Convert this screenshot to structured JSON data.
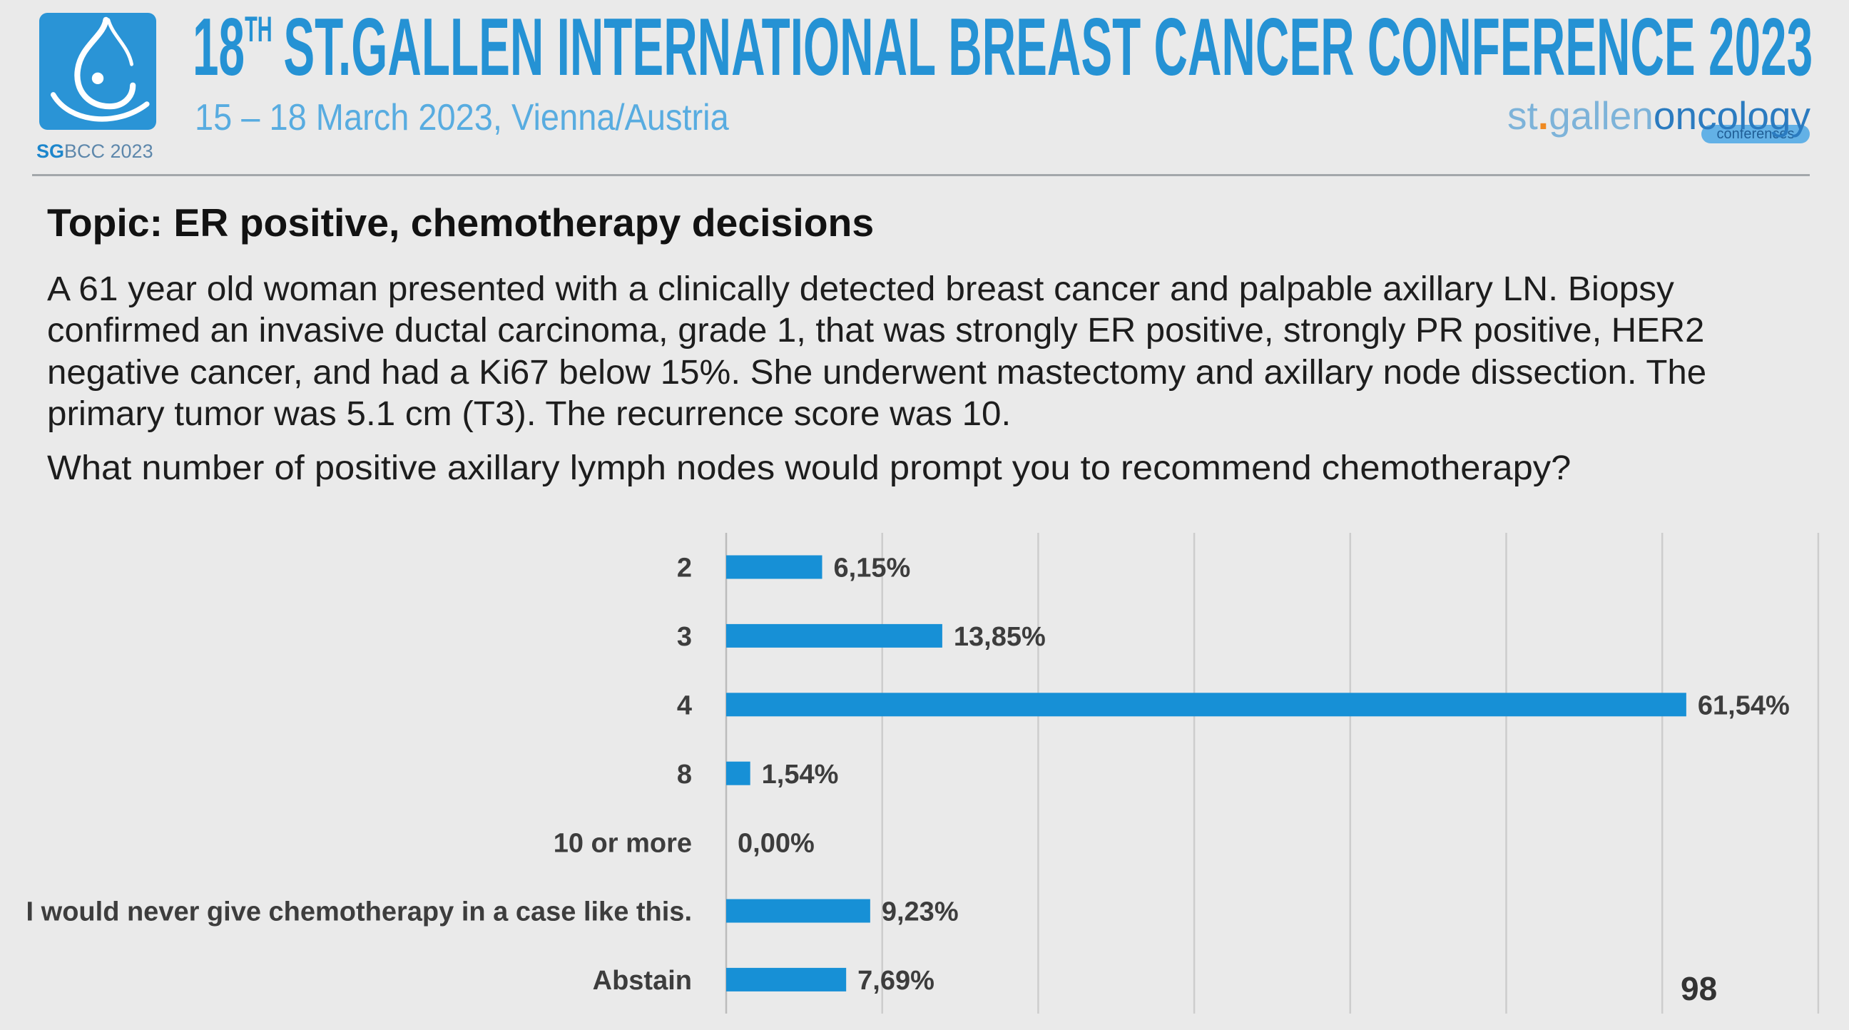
{
  "colors": {
    "logo": "#2a94d6",
    "title": "#2592d4",
    "subtitle": "#58ace0",
    "background": "#eaeaea"
  },
  "header": {
    "logo": {
      "abbr_bold": "SG",
      "abbr_rest": "BCC 2023"
    },
    "title": {
      "edition_number": "18",
      "edition_suffix": "TH",
      "name": "ST.GALLEN INTERNATIONAL BREAST CANCER CONFERENCE 2023"
    },
    "subtitle": "15 – 18 March 2023, Vienna/Austria",
    "brand": {
      "st": "st",
      "dot": ".",
      "gallen": "gallen",
      "oncology": "oncology",
      "tag": "conferences"
    }
  },
  "slide": {
    "topic": "Topic: ER positive, chemotherapy decisions",
    "case_lines": [
      "A 61 year old woman presented with a clinically detected breast cancer and palpable axillary LN. Biopsy",
      "confirmed an invasive ductal carcinoma, grade 1, that was strongly ER positive, strongly PR positive, HER2",
      "negative cancer, and had a Ki67 below 15%. She underwent mastectomy and axillary node dissection. The",
      "primary tumor was 5.1 cm (T3). The recurrence score was 10."
    ],
    "question": "What number of positive axillary lymph nodes would prompt you to recommend chemotherapy?",
    "question_number": "98"
  },
  "chart_data": {
    "type": "bar",
    "orientation": "horizontal",
    "categories": [
      "2",
      "3",
      "4",
      "8",
      "10 or more",
      "I would never give chemotherapy in a case like this.",
      "Abstain"
    ],
    "values": [
      6.15,
      13.85,
      61.54,
      1.54,
      0.0,
      9.23,
      7.69
    ],
    "data_labels": [
      "6,15%",
      "13,85%",
      "61,54%",
      "1,54%",
      "0,00%",
      "9,23%",
      "7,69%"
    ],
    "xlim": [
      0,
      70
    ],
    "grid": true,
    "grid_step": 10,
    "bar_color": "#1790d6"
  }
}
